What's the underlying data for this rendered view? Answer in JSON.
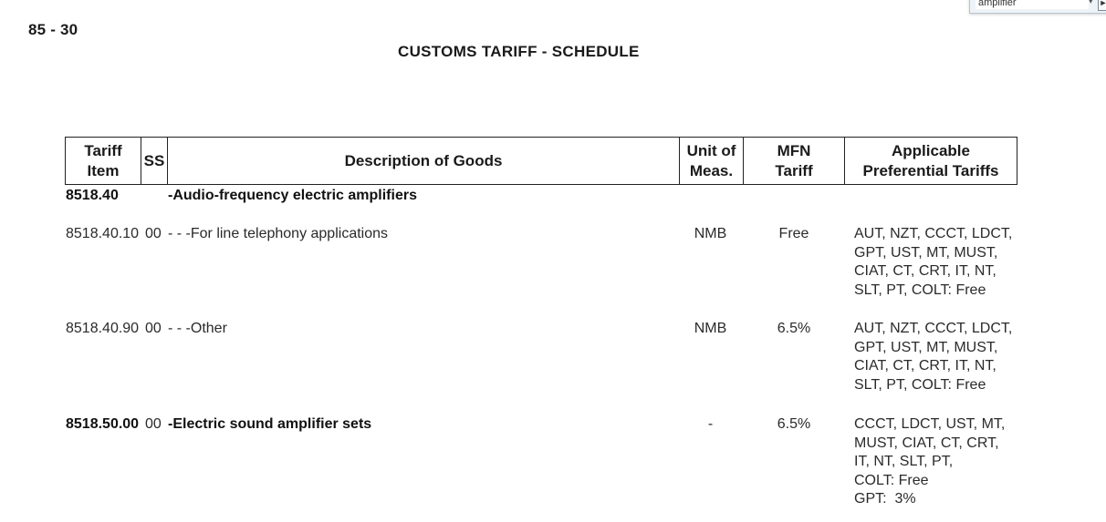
{
  "page_number": "85 - 30",
  "title": "CUSTOMS TARIFF - SCHEDULE",
  "search": {
    "value": "amplifier",
    "next_label": "►"
  },
  "header": {
    "tariff_item": "Tariff\nItem",
    "ss": "SS",
    "description": "Description of Goods",
    "unit": "Unit of\nMeas.",
    "mfn": "MFN\nTariff",
    "preferential": "Applicable\nPreferential Tariffs"
  },
  "heading_row": {
    "tariff_item": "8518.40",
    "description": "-Audio-frequency electric amplifiers"
  },
  "rows": [
    {
      "tariff_item": "8518.40.10",
      "ss": "00",
      "description": "- - -For line telephony applications",
      "unit": "NMB",
      "mfn": "Free",
      "preferential": "AUT, NZT, CCCT, LDCT,\nGPT, UST, MT, MUST,\nCIAT, CT, CRT, IT, NT,\nSLT, PT, COLT: Free"
    },
    {
      "tariff_item": "8518.40.90",
      "ss": "00",
      "description": "- - -Other",
      "unit": "NMB",
      "mfn": "6.5%",
      "preferential": "AUT, NZT, CCCT, LDCT,\nGPT, UST, MT, MUST,\nCIAT, CT, CRT, IT, NT,\nSLT, PT, COLT: Free"
    },
    {
      "tariff_item": "8518.50.00",
      "ss": "00",
      "description": "-Electric sound amplifier sets",
      "unit": "-",
      "mfn": "6.5%",
      "preferential": "CCCT, LDCT, UST, MT,\nMUST, CIAT, CT, CRT,\nIT, NT, SLT, PT,\nCOLT: Free\nGPT:  3%"
    }
  ]
}
